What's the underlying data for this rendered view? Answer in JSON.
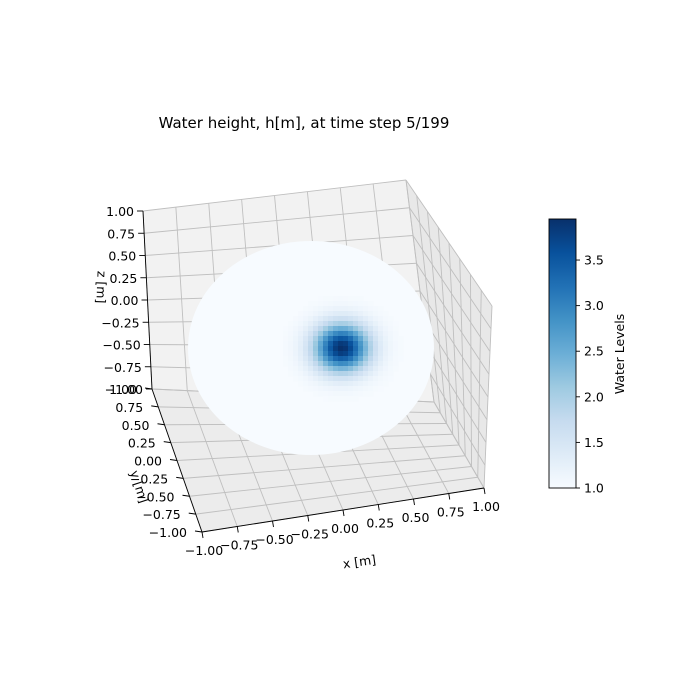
{
  "chart_data": {
    "type": "surface",
    "title": "Water height, h[m], at time step 5/199",
    "xlabel": "x [m]",
    "ylabel": "y [m]",
    "zlabel": "z [m]",
    "xlim": [
      -1.0,
      1.0
    ],
    "ylim": [
      -1.0,
      1.0
    ],
    "zlim": [
      -1.0,
      1.0
    ],
    "x_ticks": [
      "−1.00",
      "−0.75",
      "−0.50",
      "−0.25",
      "0.00",
      "0.25",
      "0.50",
      "0.75",
      "1.00"
    ],
    "y_ticks": [
      "1.00",
      "0.75",
      "0.50",
      "0.25",
      "0.00",
      "−0.25",
      "−0.50",
      "−0.75",
      "−1.00"
    ],
    "z_ticks": [
      "1.00",
      "0.75",
      "0.50",
      "0.25",
      "0.00",
      "−0.25",
      "−0.50",
      "−0.75",
      "−1.00"
    ],
    "grid": true,
    "domain": "circle of radius 1 centered at (0, 0)",
    "surface": {
      "base_level": 1.0,
      "peak_level": 3.95,
      "peak_x": 0.25,
      "peak_y": 0.0,
      "peak_radius": 0.28,
      "colormap": "Blues"
    },
    "colorbar": {
      "label": "Water Levels",
      "min": 1.0,
      "max": 3.95,
      "ticks": [
        "1.0",
        "1.5",
        "2.0",
        "2.5",
        "3.0",
        "3.5"
      ],
      "tick_values": [
        1.0,
        1.5,
        2.0,
        2.5,
        3.0,
        3.5
      ],
      "colors": [
        "#f7fbff",
        "#deebf7",
        "#c6dbef",
        "#9ecae1",
        "#6baed6",
        "#4292c6",
        "#2171b5",
        "#08519c",
        "#08306b"
      ]
    }
  }
}
